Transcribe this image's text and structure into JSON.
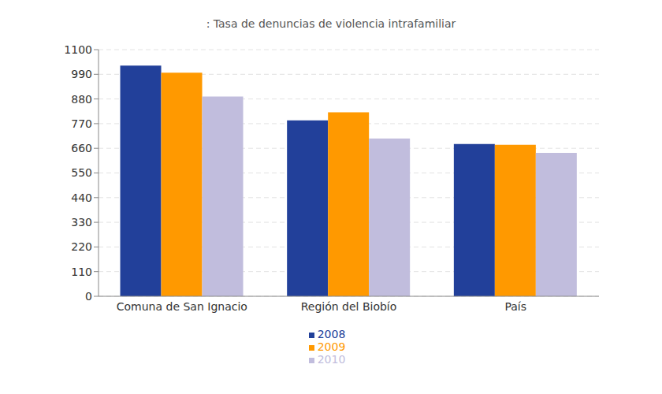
{
  "chart_data": {
    "type": "bar",
    "title": ": Tasa de denuncias de violencia intrafamiliar",
    "categories": [
      "Comuna de San Ignacio",
      "Región del Biobío",
      "País"
    ],
    "series": [
      {
        "name": "2008",
        "color": "#22409a",
        "values": [
          1029,
          785,
          679
        ]
      },
      {
        "name": "2009",
        "color": "#ff9900",
        "values": [
          997,
          821,
          676
        ]
      },
      {
        "name": "2010",
        "color": "#c1bddd",
        "values": [
          891,
          704,
          640
        ]
      }
    ],
    "ylim": [
      0,
      1100
    ],
    "yticks": [
      0,
      110,
      220,
      330,
      440,
      550,
      660,
      770,
      880,
      990,
      1100
    ],
    "grid": true,
    "legend": "bottom"
  }
}
